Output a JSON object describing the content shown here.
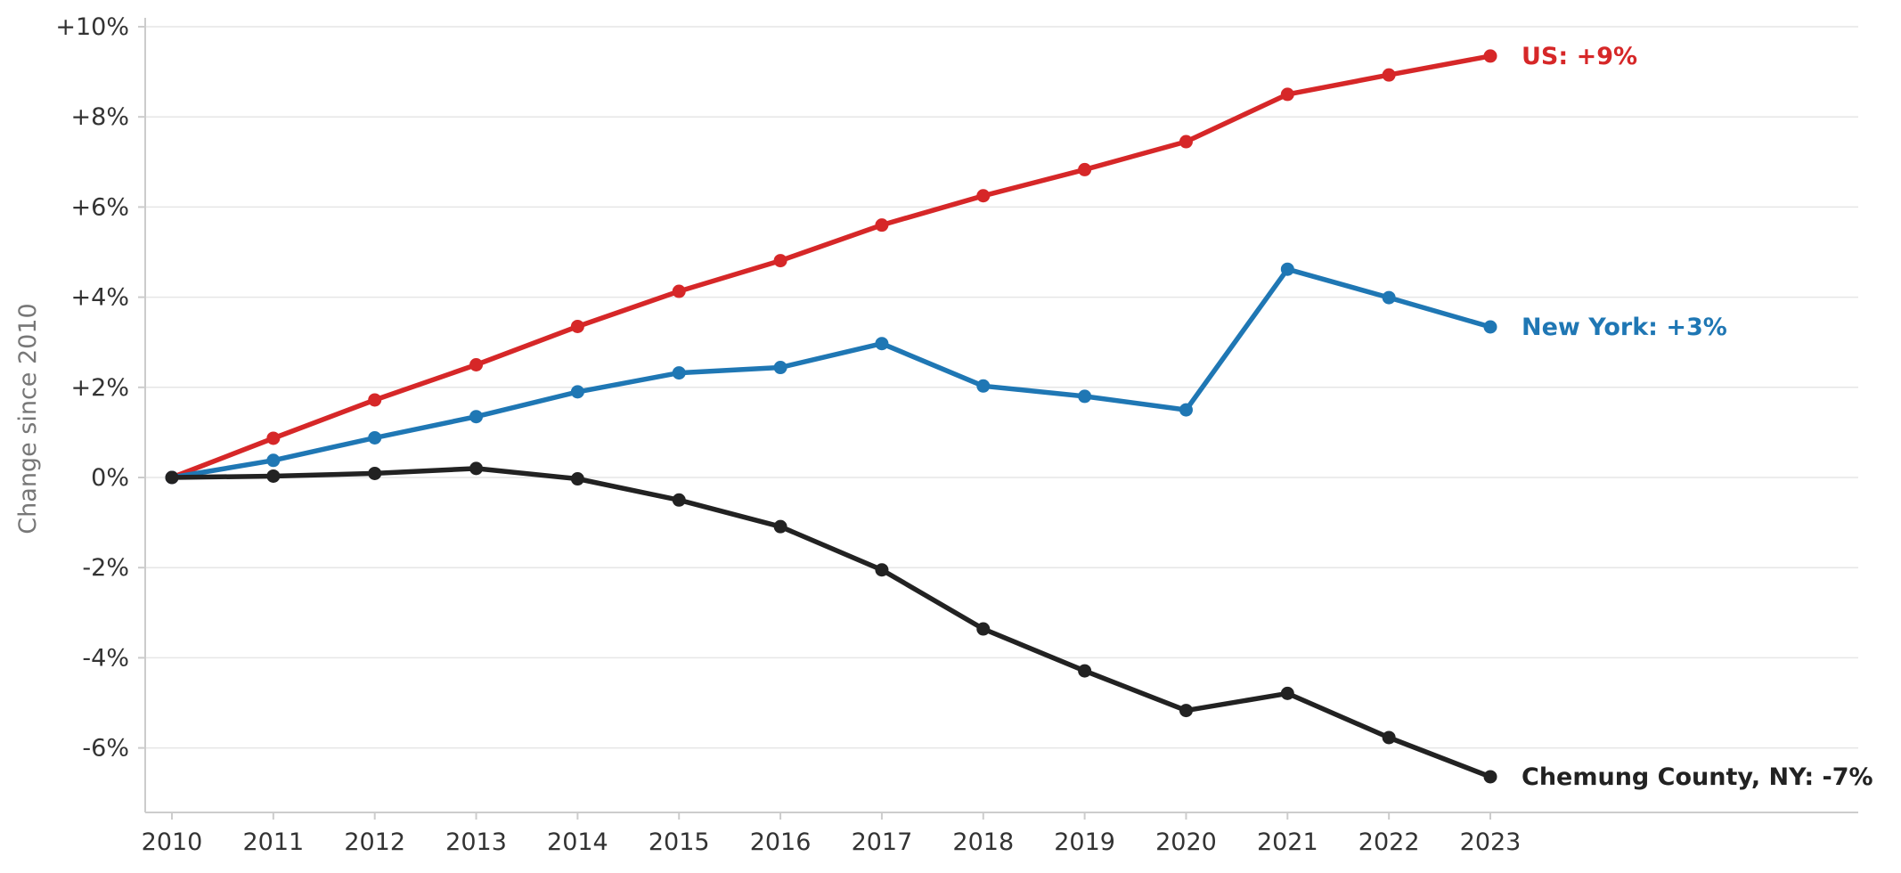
{
  "chart_data": {
    "type": "line",
    "title": "",
    "xlabel": "",
    "ylabel": "Change since 2010",
    "x": [
      2010,
      2011,
      2012,
      2013,
      2014,
      2015,
      2016,
      2017,
      2018,
      2019,
      2020,
      2021,
      2022,
      2023
    ],
    "x_tick_labels": [
      "2010",
      "2011",
      "2012",
      "2013",
      "2014",
      "2015",
      "2016",
      "2017",
      "2018",
      "2019",
      "2020",
      "2021",
      "2022",
      "2023"
    ],
    "ylim": [
      -7.5,
      10
    ],
    "y_ticks": [
      10,
      8,
      6,
      4,
      2,
      0,
      -2,
      -4,
      -6
    ],
    "y_tick_labels": [
      "+10%",
      "+8%",
      "+6%",
      "+4%",
      "+2%",
      "0%",
      "-2%",
      "-4%",
      "-6%"
    ],
    "grid": "horizontal",
    "legend": "direct labels at line ends",
    "series": [
      {
        "key": "us",
        "end_label": "US: +9%",
        "color": "#d62728",
        "values": [
          0,
          0.87,
          1.72,
          2.5,
          3.35,
          4.13,
          4.81,
          5.6,
          6.25,
          6.83,
          7.45,
          8.5,
          8.93,
          9.35
        ]
      },
      {
        "key": "new-york",
        "end_label": "New York: +3%",
        "color": "#1f77b4",
        "values": [
          0,
          0.38,
          0.88,
          1.35,
          1.9,
          2.32,
          2.44,
          2.97,
          2.03,
          1.8,
          1.5,
          4.62,
          3.99,
          3.34
        ]
      },
      {
        "key": "chemung",
        "end_label": "Chemung County, NY: -7%",
        "color": "#222222",
        "values": [
          0,
          0.03,
          0.09,
          0.2,
          -0.03,
          -0.5,
          -1.09,
          -2.05,
          -3.36,
          -4.29,
          -5.17,
          -4.79,
          -5.77,
          -6.64
        ]
      }
    ]
  }
}
